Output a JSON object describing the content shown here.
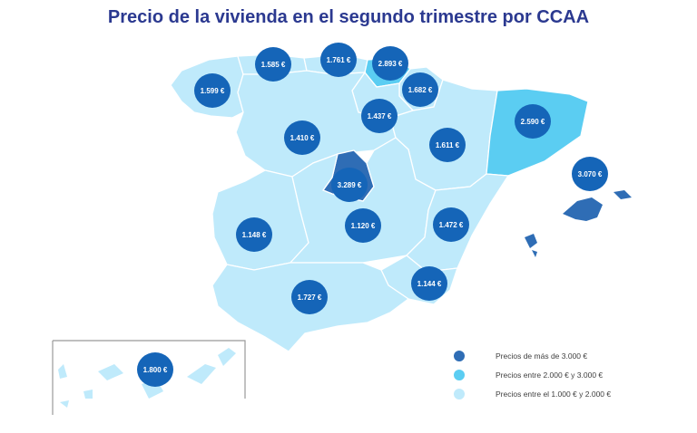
{
  "title": "Precio de la vivienda en el segundo trimestre por CCAA",
  "colors": {
    "high": "#2f6db5",
    "mid": "#5bcdf2",
    "low": "#bfeafb",
    "badge": "#1565b8",
    "title": "#2b3990"
  },
  "regions": [
    {
      "name": "Galicia",
      "price": "1.599 €",
      "tier": "low"
    },
    {
      "name": "Asturias",
      "price": "1.585 €",
      "tier": "low"
    },
    {
      "name": "Cantabria",
      "price": "1.761 €",
      "tier": "low"
    },
    {
      "name": "País Vasco",
      "price": "2.893 €",
      "tier": "mid"
    },
    {
      "name": "Navarra",
      "price": "1.682 €",
      "tier": "low"
    },
    {
      "name": "La Rioja",
      "price": "1.437 €",
      "tier": "low"
    },
    {
      "name": "Castilla y León",
      "price": "1.410 €",
      "tier": "low"
    },
    {
      "name": "Aragón",
      "price": "1.611 €",
      "tier": "low"
    },
    {
      "name": "Cataluña",
      "price": "2.590 €",
      "tier": "mid"
    },
    {
      "name": "Madrid",
      "price": "3.289 €",
      "tier": "high"
    },
    {
      "name": "Islas Baleares",
      "price": "3.070 €",
      "tier": "high"
    },
    {
      "name": "Extremadura",
      "price": "1.148 €",
      "tier": "low"
    },
    {
      "name": "Castilla-La Mancha",
      "price": "1.120 €",
      "tier": "low"
    },
    {
      "name": "Comunidad Valenciana",
      "price": "1.472 €",
      "tier": "low"
    },
    {
      "name": "Región de Murcia",
      "price": "1.144 €",
      "tier": "low"
    },
    {
      "name": "Andalucía",
      "price": "1.727 €",
      "tier": "low"
    },
    {
      "name": "Canarias",
      "price": "1.800 €",
      "tier": "low"
    }
  ],
  "legend": [
    {
      "label": "Precios de más de 3.000 €",
      "tier": "high"
    },
    {
      "label": "Precios entre 2.000 € y 3.000 €",
      "tier": "mid"
    },
    {
      "label": "Precios entre el 1.000 € y 2.000 €",
      "tier": "low"
    }
  ]
}
